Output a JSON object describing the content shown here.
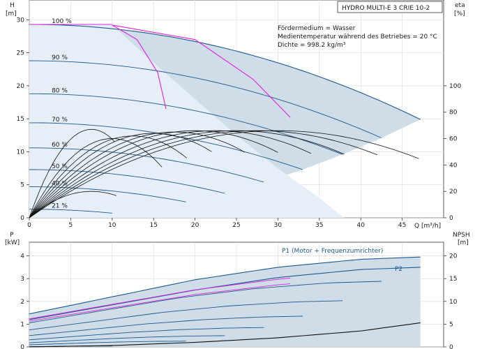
{
  "header": {
    "title": "HYDRO MULTI-E 3 CRIE 10-2",
    "info_lines": [
      "Fördermedium = Wasser",
      "Medientemperatur während des Betriebes = 20 °C",
      "Dichte = 998.2 kg/m³"
    ]
  },
  "colors": {
    "background": "#ffffff",
    "area_fill": "#cfdde9",
    "light_fill": "#e6eff7",
    "curve_blue": "#1e5a8c",
    "curve_black": "#111111",
    "curve_magenta": "#e020e0",
    "axis": "#333333"
  },
  "chart_data": [
    {
      "type": "line",
      "name": "head",
      "ylabel": "H",
      "yunit": "[m]",
      "y2label": "eta",
      "y2unit": "[%]",
      "xlabel": "Q [m³/h]",
      "xlim": [
        0,
        50
      ],
      "ylim": [
        0,
        33
      ],
      "y2lim": [
        0,
        165
      ],
      "xticks": [
        0,
        5,
        10,
        15,
        20,
        25,
        30,
        35,
        40,
        45
      ],
      "yticks": [
        0,
        5,
        10,
        15,
        20,
        25,
        30
      ],
      "y2ticks": [
        0,
        20,
        40,
        60,
        80,
        100
      ],
      "grid": true,
      "speed_curves": [
        {
          "label": "100 %",
          "H0": 29.3,
          "Qmax": 47.2,
          "Hend": 14.9
        },
        {
          "label": "90 %",
          "H0": 23.8,
          "Qmax": 42.5,
          "Hend": 12.1
        },
        {
          "label": "80 %",
          "H0": 18.8,
          "Qmax": 37.8,
          "Hend": 9.6
        },
        {
          "label": "70 %",
          "H0": 14.4,
          "Qmax": 33.0,
          "Hend": 7.3
        },
        {
          "label": "60 %",
          "H0": 10.6,
          "Qmax": 28.3,
          "Hend": 5.4
        },
        {
          "label": "50 %",
          "H0": 7.3,
          "Qmax": 23.6,
          "Hend": 3.7
        },
        {
          "label": "40 %",
          "H0": 4.7,
          "Qmax": 18.9,
          "Hend": 2.4
        },
        {
          "label": "21 %",
          "H0": 1.3,
          "Qmax": 10.0,
          "Hend": 0.7
        }
      ],
      "efficiency_curves": [
        {
          "Qpeak": 7.5,
          "etaPeak": 67,
          "Qend": 10.3
        },
        {
          "Qpeak": 10,
          "etaPeak": 60,
          "Qend": 16
        },
        {
          "Qpeak": 12.5,
          "etaPeak": 62,
          "Qend": 19
        },
        {
          "Qpeak": 15,
          "etaPeak": 64,
          "Qend": 22
        },
        {
          "Qpeak": 17.5,
          "etaPeak": 65,
          "Qend": 26
        },
        {
          "Qpeak": 20,
          "etaPeak": 66,
          "Qend": 30
        },
        {
          "Qpeak": 22.5,
          "etaPeak": 66,
          "Qend": 34
        },
        {
          "Qpeak": 25,
          "etaPeak": 66,
          "Qend": 38
        },
        {
          "Qpeak": 27.5,
          "etaPeak": 66,
          "Qend": 42
        },
        {
          "Qpeak": 30,
          "etaPeak": 66,
          "Qend": 47
        },
        {
          "Qpeak": 7.5,
          "etaPeak": 20,
          "Qend": 10.5
        }
      ],
      "boundary_curve": [
        [
          0,
          29.3
        ],
        [
          5,
          29.3
        ],
        [
          10,
          29.2
        ],
        [
          15,
          23.5
        ],
        [
          20,
          18
        ],
        [
          25,
          12.5
        ],
        [
          30,
          7.5
        ],
        [
          35,
          3
        ],
        [
          38,
          0
        ]
      ]
    },
    {
      "type": "line",
      "name": "power",
      "ylabel": "P",
      "yunit": "[kW]",
      "y2label": "NPSH",
      "y2unit": "[m]",
      "xlim": [
        0,
        50
      ],
      "ylim": [
        0,
        4.6
      ],
      "y2lim": [
        0,
        23
      ],
      "yticks": [
        0,
        1,
        2,
        3,
        4
      ],
      "y2ticks": [
        0,
        5,
        10,
        15,
        20
      ],
      "series": [
        {
          "name": "P1 (Motor + Frequenzumrichter)",
          "x": [
            0,
            10,
            20,
            30,
            40,
            47.2
          ],
          "y": [
            1.45,
            2.2,
            2.95,
            3.5,
            3.85,
            3.95
          ]
        },
        {
          "name": "P2",
          "x": [
            0,
            10,
            20,
            30,
            40,
            47.2
          ],
          "y": [
            1.2,
            1.85,
            2.5,
            3.05,
            3.4,
            3.5
          ]
        }
      ],
      "npsh": {
        "x": [
          0,
          10,
          20,
          30,
          40,
          47.2
        ],
        "y": [
          0.0,
          0.3,
          1.0,
          2.0,
          3.5,
          5.3
        ]
      }
    }
  ]
}
